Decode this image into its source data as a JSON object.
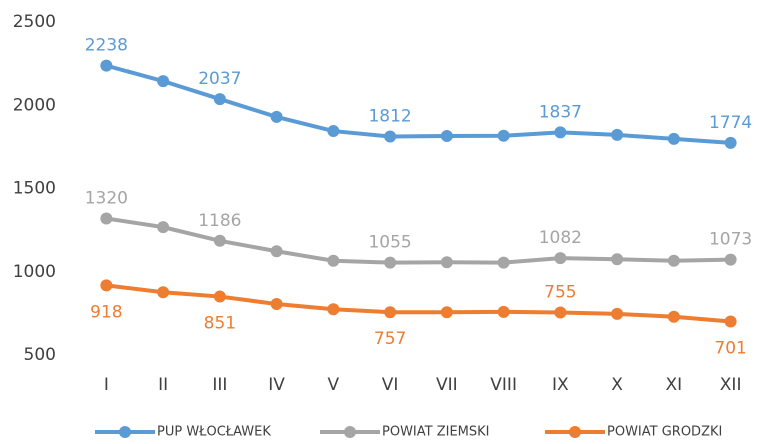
{
  "chart_data": {
    "type": "line",
    "categories": [
      "I",
      "II",
      "III",
      "IV",
      "V",
      "VI",
      "VII",
      "VIII",
      "IX",
      "X",
      "XI",
      "XII"
    ],
    "series": [
      {
        "name": "PUP WŁOCŁAWEK",
        "color": "#5b9bd5",
        "values": [
          2238,
          2145,
          2037,
          1930,
          1845,
          1812,
          1815,
          1817,
          1837,
          1822,
          1798,
          1774
        ],
        "value_labels": [
          "2238",
          null,
          "2037",
          null,
          null,
          "1812",
          null,
          null,
          "1837",
          null,
          null,
          "1774"
        ]
      },
      {
        "name": "POWIAT ZIEMSKI",
        "color": "#a5a5a5",
        "values": [
          1320,
          1268,
          1186,
          1123,
          1066,
          1055,
          1057,
          1055,
          1082,
          1075,
          1066,
          1073
        ],
        "value_labels": [
          "1320",
          null,
          "1186",
          null,
          null,
          "1055",
          null,
          null,
          "1082",
          null,
          null,
          "1073"
        ]
      },
      {
        "name": "POWIAT GRODZKI",
        "color": "#ed7d31",
        "values": [
          918,
          877,
          851,
          806,
          775,
          757,
          757,
          759,
          755,
          747,
          730,
          701
        ],
        "value_labels": [
          "918",
          null,
          "851",
          null,
          null,
          "757",
          null,
          null,
          "755",
          null,
          null,
          "701"
        ]
      }
    ],
    "ylim": [
      500,
      2500
    ],
    "yticks": [
      500,
      1000,
      1500,
      2000,
      2500
    ],
    "grid": false,
    "legend": "bottom"
  }
}
